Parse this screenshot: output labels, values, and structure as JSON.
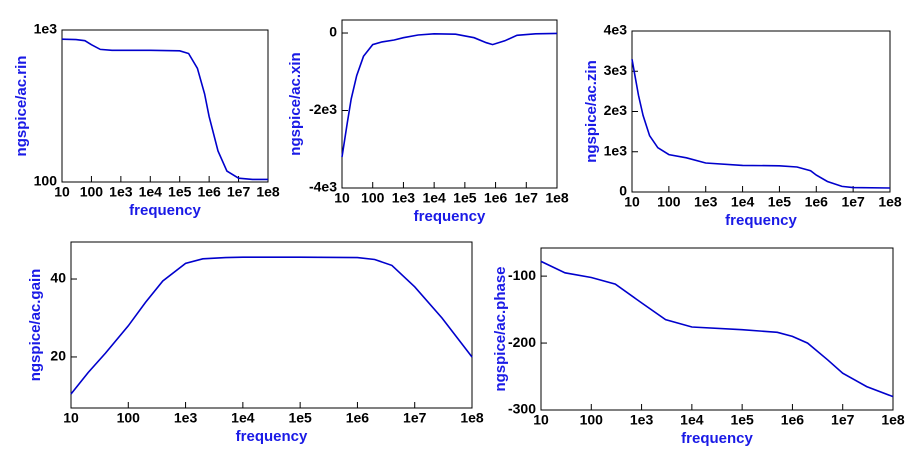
{
  "chart_data": [
    {
      "type": "line",
      "xscale": "log",
      "yscale": "log",
      "xlabel": "frequency",
      "ylabel": "ngspice/ac.rin",
      "color": "#0000cc",
      "x": [
        10,
        30,
        60,
        100,
        200,
        500,
        1000,
        10000,
        100000,
        200000,
        400000,
        700000,
        1000000,
        2000000,
        4000000,
        10000000,
        30000000,
        100000000
      ],
      "values": [
        870,
        865,
        850,
        800,
        745,
        735,
        735,
        735,
        730,
        700,
        560,
        380,
        270,
        160,
        118,
        106,
        104,
        104
      ],
      "xlim": [
        10,
        100000000
      ],
      "ylim": [
        100,
        1000
      ],
      "xticks": [
        10,
        100,
        {
          "value": 1000,
          "label": "1e3"
        },
        {
          "value": 10000,
          "label": "1e4"
        },
        {
          "value": 100000,
          "label": "1e5"
        },
        {
          "value": 1000000,
          "label": "1e6"
        },
        {
          "value": 10000000,
          "label": "1e7"
        },
        {
          "value": 100000000,
          "label": "1e8"
        }
      ],
      "yticks": [
        100,
        {
          "value": 1000,
          "label": "1e3"
        }
      ]
    },
    {
      "type": "line",
      "xscale": "log",
      "xlabel": "frequency",
      "ylabel": "ngspice/ac.xin",
      "color": "#0000cc",
      "x": [
        10,
        15,
        20,
        30,
        50,
        100,
        200,
        500,
        1000,
        3000,
        10000,
        50000,
        200000,
        500000,
        800000,
        2000000,
        5000000,
        20000000,
        100000000
      ],
      "values": [
        -3200,
        -2300,
        -1700,
        -1100,
        -600,
        -300,
        -230,
        -180,
        -120,
        -50,
        -20,
        -30,
        -120,
        -250,
        -300,
        -200,
        -60,
        -20,
        -10
      ],
      "xlim": [
        10,
        100000000
      ],
      "ylim": [
        -4000,
        336
      ],
      "xticks": [
        10,
        100,
        {
          "value": 1000,
          "label": "1e3"
        },
        {
          "value": 10000,
          "label": "1e4"
        },
        {
          "value": 100000,
          "label": "1e5"
        },
        {
          "value": 1000000,
          "label": "1e6"
        },
        {
          "value": 10000000,
          "label": "1e7"
        },
        {
          "value": 100000000,
          "label": "1e8"
        }
      ],
      "yticks": [
        {
          "value": -4000,
          "label": "-4e3"
        },
        {
          "value": -2000,
          "label": "-2e3"
        },
        0
      ]
    },
    {
      "type": "line",
      "xscale": "log",
      "xlabel": "frequency",
      "ylabel": "ngspice/ac.zin",
      "color": "#0000cc",
      "x": [
        10,
        15,
        20,
        30,
        50,
        100,
        300,
        1000,
        10000,
        100000,
        300000,
        700000,
        1000000,
        2000000,
        5000000,
        10000000,
        100000000
      ],
      "values": [
        3300,
        2400,
        1900,
        1400,
        1100,
        930,
        850,
        720,
        660,
        650,
        620,
        530,
        420,
        260,
        140,
        110,
        100
      ],
      "xlim": [
        10,
        100000000
      ],
      "ylim": [
        0,
        4000
      ],
      "xticks": [
        10,
        100,
        {
          "value": 1000,
          "label": "1e3"
        },
        {
          "value": 10000,
          "label": "1e4"
        },
        {
          "value": 100000,
          "label": "1e5"
        },
        {
          "value": 1000000,
          "label": "1e6"
        },
        {
          "value": 10000000,
          "label": "1e7"
        },
        {
          "value": 100000000,
          "label": "1e8"
        }
      ],
      "yticks": [
        0,
        {
          "value": 1000,
          "label": "1e3"
        },
        {
          "value": 2000,
          "label": "2e3"
        },
        {
          "value": 3000,
          "label": "3e3"
        },
        {
          "value": 4000,
          "label": "4e3"
        }
      ]
    },
    {
      "type": "line",
      "xscale": "log",
      "xlabel": "frequency",
      "ylabel": "ngspice/ac.gain",
      "color": "#0000cc",
      "x": [
        10,
        20,
        40,
        100,
        200,
        400,
        1000,
        2000,
        5000,
        10000,
        100000,
        1000000,
        2000000,
        4000000,
        10000000,
        30000000,
        100000000
      ],
      "values": [
        10.5,
        16,
        21,
        28,
        34,
        39.5,
        44,
        45.2,
        45.5,
        45.6,
        45.6,
        45.5,
        45,
        43.5,
        38,
        30,
        20
      ],
      "xlim": [
        10,
        100000000
      ],
      "ylim": [
        6.9,
        49.5
      ],
      "xticks": [
        10,
        100,
        {
          "value": 1000,
          "label": "1e3"
        },
        {
          "value": 10000,
          "label": "1e4"
        },
        {
          "value": 100000,
          "label": "1e5"
        },
        {
          "value": 1000000,
          "label": "1e6"
        },
        {
          "value": 10000000,
          "label": "1e7"
        },
        {
          "value": 100000000,
          "label": "1e8"
        }
      ],
      "yticks": [
        20,
        40
      ]
    },
    {
      "type": "line",
      "xscale": "log",
      "xlabel": "frequency",
      "ylabel": "ngspice/ac.phase",
      "color": "#0000cc",
      "x": [
        10,
        30,
        100,
        300,
        1000,
        3000,
        10000,
        100000,
        500000,
        1000000,
        2000000,
        5000000,
        10000000,
        30000000,
        100000000
      ],
      "values": [
        -78,
        -95,
        -102,
        -112,
        -140,
        -165,
        -176,
        -180,
        -184,
        -190,
        -200,
        -225,
        -245,
        -265,
        -280
      ],
      "xlim": [
        10,
        100000000
      ],
      "ylim": [
        -300,
        -58
      ],
      "xticks": [
        10,
        100,
        {
          "value": 1000,
          "label": "1e3"
        },
        {
          "value": 10000,
          "label": "1e4"
        },
        {
          "value": 100000,
          "label": "1e5"
        },
        {
          "value": 1000000,
          "label": "1e6"
        },
        {
          "value": 10000000,
          "label": "1e7"
        },
        {
          "value": 100000000,
          "label": "1e8"
        }
      ],
      "yticks": [
        -300,
        -200,
        -100
      ]
    }
  ]
}
